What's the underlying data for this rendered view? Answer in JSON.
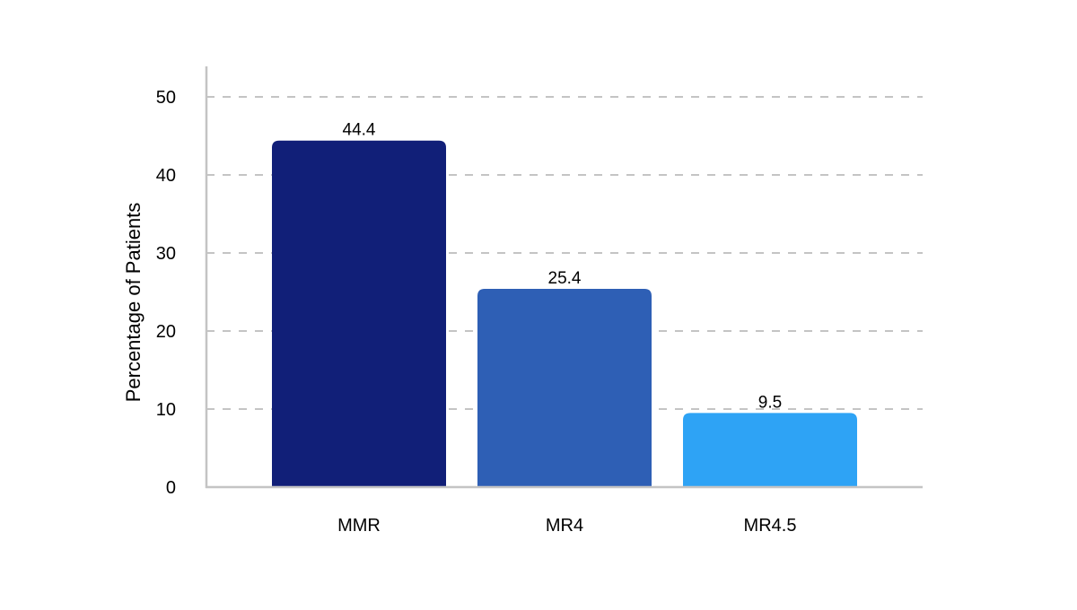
{
  "chart_data": {
    "type": "bar",
    "title": "",
    "xlabel": "",
    "ylabel": "Percentage of Patients",
    "categories": [
      "MMR",
      "MR4",
      "MR4.5"
    ],
    "values": [
      44.4,
      25.4,
      9.5
    ],
    "data_labels": [
      "44.4",
      "25.4",
      "9.5"
    ],
    "bar_colors": [
      "#111f78",
      "#2e5fb5",
      "#2ea3f5"
    ],
    "ylim": [
      0,
      50
    ],
    "yticks": [
      0,
      10,
      20,
      30,
      40,
      50
    ],
    "grid": true,
    "grid_style": "dashed",
    "grid_color": "#c4c4c4",
    "axis_color": "#c4c4c4",
    "legend": "none"
  }
}
